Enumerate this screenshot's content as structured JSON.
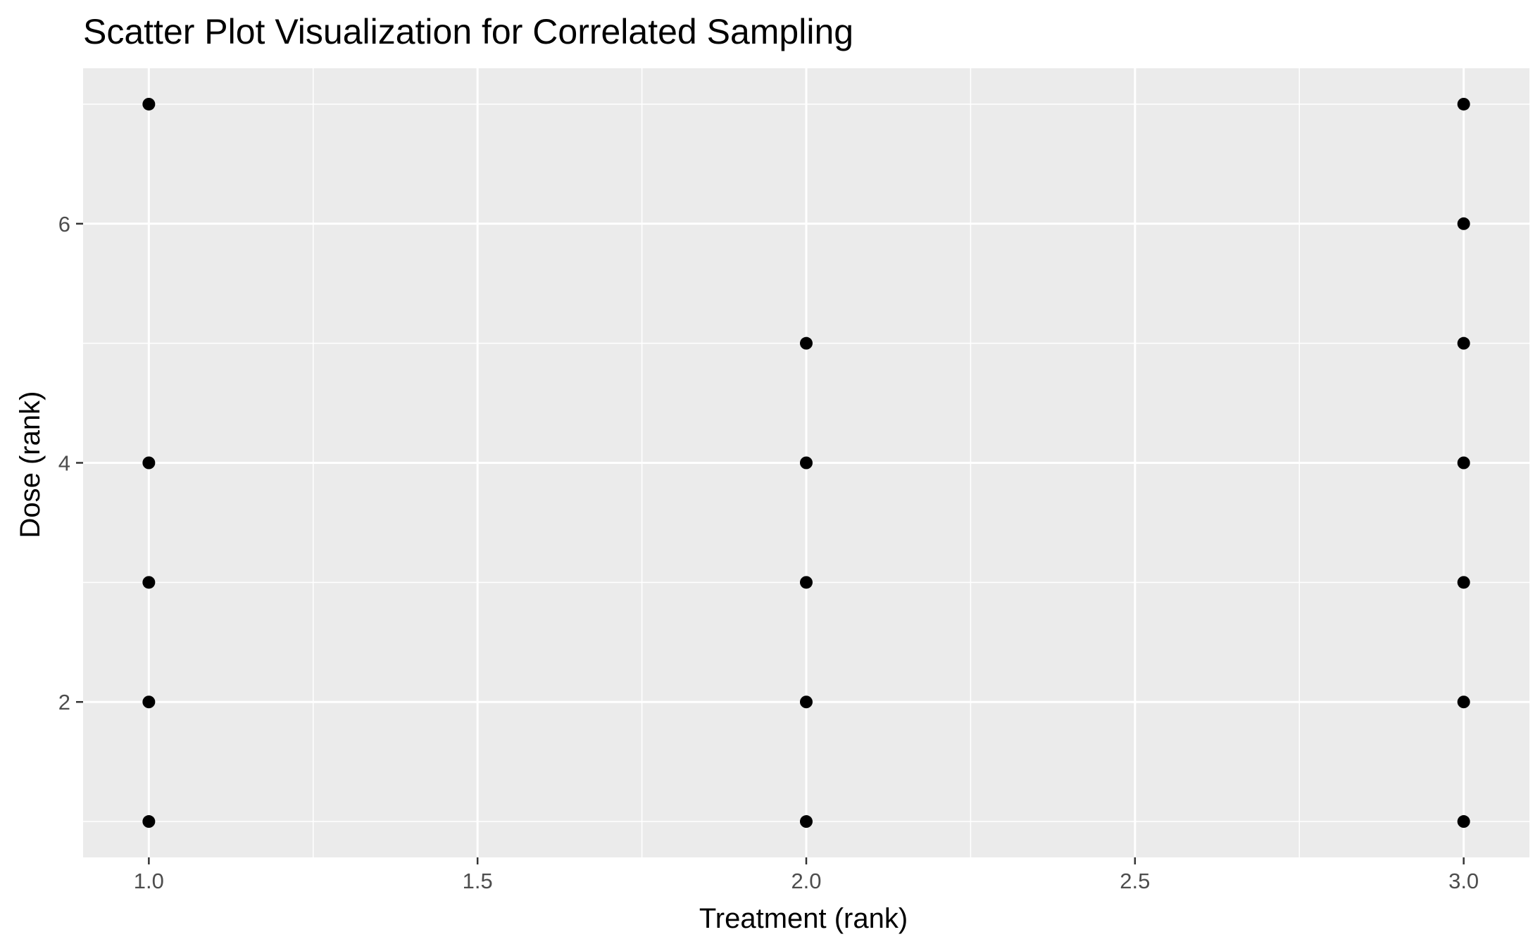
{
  "chart_data": {
    "type": "scatter",
    "title": "Scatter Plot Visualization for Correlated Sampling",
    "xlabel": "Treatment (rank)",
    "ylabel": "Dose (rank)",
    "xlim": [
      0.9,
      3.1
    ],
    "ylim": [
      0.7,
      7.3
    ],
    "x_ticks": [
      1.0,
      1.5,
      2.0,
      2.5,
      3.0
    ],
    "x_tick_labels": [
      "1.0",
      "1.5",
      "2.0",
      "2.5",
      "3.0"
    ],
    "y_ticks": [
      2,
      4,
      6
    ],
    "y_tick_labels": [
      "2",
      "4",
      "6"
    ],
    "grid": true,
    "legend": "none",
    "colors": {
      "panel": "#ebebeb",
      "grid": "#ffffff",
      "point": "#000000",
      "tick_label": "#4d4d4d",
      "tick_mark": "#333333"
    },
    "points": [
      {
        "x": 1,
        "y": 7
      },
      {
        "x": 1,
        "y": 4
      },
      {
        "x": 1,
        "y": 3
      },
      {
        "x": 1,
        "y": 2
      },
      {
        "x": 1,
        "y": 1
      },
      {
        "x": 2,
        "y": 5
      },
      {
        "x": 2,
        "y": 4
      },
      {
        "x": 2,
        "y": 3
      },
      {
        "x": 2,
        "y": 2
      },
      {
        "x": 2,
        "y": 1
      },
      {
        "x": 3,
        "y": 7
      },
      {
        "x": 3,
        "y": 6
      },
      {
        "x": 3,
        "y": 5
      },
      {
        "x": 3,
        "y": 4
      },
      {
        "x": 3,
        "y": 3
      },
      {
        "x": 3,
        "y": 2
      },
      {
        "x": 3,
        "y": 1
      }
    ]
  }
}
